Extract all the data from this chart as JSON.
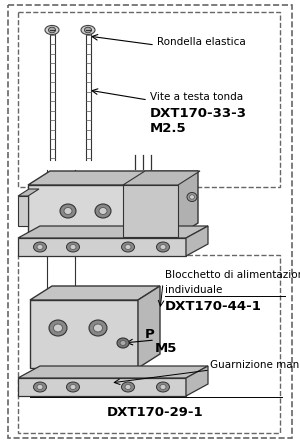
{
  "bg_color": "#ffffff",
  "border_color": "#666666",
  "text_color": "#000000",
  "label_rondella": "Rondella elastica",
  "label_vite": "Vite a testa tonda",
  "label_dxt33": "DXT170-33-3",
  "label_m25": "M2.5",
  "label_blocchetto_line1": "Blocchetto di alimentazione",
  "label_blocchetto_line2": "individuale",
  "label_dxt44": "DXT170-44-1",
  "label_p": "P",
  "label_m5": "M5",
  "label_guarnizione": "Guarnizione manifold",
  "label_dxt29": "DXT170-29-1",
  "font_size_label": 7.5,
  "font_size_code": 9.5,
  "font_size_sub": 8.5
}
